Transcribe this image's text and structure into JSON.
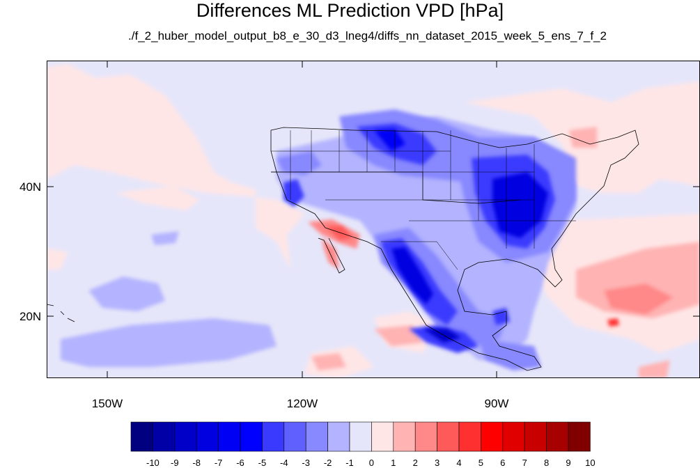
{
  "title": "Differences ML Prediction VPD [hPa]",
  "subtitle": "./f_2_huber_model_output_b8_e_30_d3_lneg4/diffs_nn_dataset_2015_week_5_ens_7_f_2",
  "lat_labels": [
    "40N",
    "20N"
  ],
  "lon_labels": [
    "150W",
    "120W",
    "90W"
  ],
  "colorbar": {
    "labels": [
      "-10",
      "-9",
      "-8",
      "-7",
      "-6",
      "-5",
      "-4",
      "-3",
      "-2",
      "-1",
      "0",
      "1",
      "2",
      "3",
      "4",
      "5",
      "6",
      "7",
      "8",
      "9",
      "10"
    ],
    "colors": [
      "#000080",
      "#0000a6",
      "#0000c8",
      "#0000e0",
      "#0000f5",
      "#0000ff",
      "#3a3aff",
      "#6060ff",
      "#8888ff",
      "#b3b3ff",
      "#e6e6fa",
      "#ffe6e6",
      "#ffb3b3",
      "#ff8888",
      "#ff5a5a",
      "#ff3030",
      "#ff0000",
      "#e00000",
      "#c80000",
      "#a60000",
      "#800000"
    ]
  },
  "background_color": "#e6e6fa"
}
